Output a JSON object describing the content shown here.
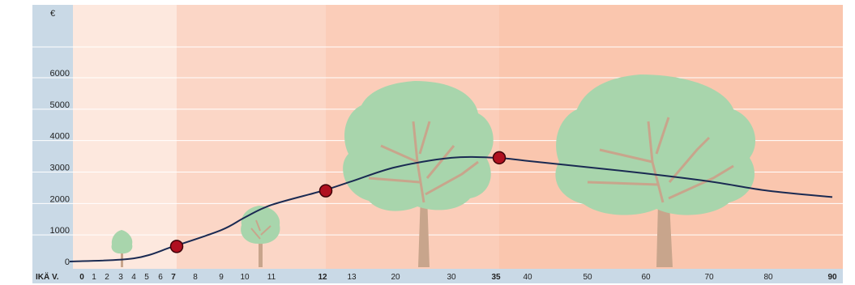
{
  "chart_data": {
    "type": "line",
    "y_unit": "€",
    "xlabel": "IKÄ V.",
    "y_ticks": [
      0,
      1000,
      2000,
      3000,
      4000,
      5000,
      6000
    ],
    "ylim": [
      0,
      7500
    ],
    "x_ticks": [
      {
        "label": "0",
        "bold": true
      },
      {
        "label": "1",
        "bold": false
      },
      {
        "label": "2",
        "bold": false
      },
      {
        "label": "3",
        "bold": false
      },
      {
        "label": "4",
        "bold": false
      },
      {
        "label": "5",
        "bold": false
      },
      {
        "label": "6",
        "bold": false
      },
      {
        "label": "7",
        "bold": true
      },
      {
        "label": "8",
        "bold": false
      },
      {
        "label": "9",
        "bold": false
      },
      {
        "label": "10",
        "bold": false
      },
      {
        "label": "11",
        "bold": false
      },
      {
        "label": "12",
        "bold": true
      },
      {
        "label": "13",
        "bold": false
      },
      {
        "label": "20",
        "bold": false
      },
      {
        "label": "30",
        "bold": false
      },
      {
        "label": "35",
        "bold": true
      },
      {
        "label": "40",
        "bold": false
      },
      {
        "label": "50",
        "bold": false
      },
      {
        "label": "60",
        "bold": false
      },
      {
        "label": "70",
        "bold": false
      },
      {
        "label": "80",
        "bold": false
      },
      {
        "label": "90",
        "bold": true
      }
    ],
    "bands": [
      {
        "from": "0",
        "to": "7",
        "color": "#fde8de"
      },
      {
        "from": "7",
        "to": "12",
        "color": "#fbd6c6"
      },
      {
        "from": "12",
        "to": "35",
        "color": "#fbcdb9"
      },
      {
        "from": "35",
        "to": "90",
        "color": "#fac6ae"
      }
    ],
    "series": [
      {
        "color": "#1a2a52",
        "points": [
          {
            "x": "0",
            "y": 0
          },
          {
            "x": "4",
            "y": 100
          },
          {
            "x": "7",
            "y": 480
          },
          {
            "x": "9",
            "y": 1000
          },
          {
            "x": "10",
            "y": 1400
          },
          {
            "x": "11",
            "y": 1800
          },
          {
            "x": "12",
            "y": 2250
          },
          {
            "x": "13",
            "y": 2550
          },
          {
            "x": "20",
            "y": 3000
          },
          {
            "x": "30",
            "y": 3300
          },
          {
            "x": "35",
            "y": 3300
          },
          {
            "x": "40",
            "y": 3200
          },
          {
            "x": "50",
            "y": 3000
          },
          {
            "x": "60",
            "y": 2800
          },
          {
            "x": "70",
            "y": 2550
          },
          {
            "x": "80",
            "y": 2250
          },
          {
            "x": "90",
            "y": 2050
          }
        ]
      }
    ],
    "markers": [
      {
        "x": "7",
        "y": 480
      },
      {
        "x": "12",
        "y": 2250
      },
      {
        "x": "35",
        "y": 3300
      }
    ],
    "colors": {
      "axis_column": "#c9d9e6",
      "grid": "#ffffff",
      "marker_fill": "#b01020",
      "marker_stroke": "#400008",
      "tree_crown": "#a8d5ac",
      "tree_trunk": "#c8a58c"
    }
  }
}
